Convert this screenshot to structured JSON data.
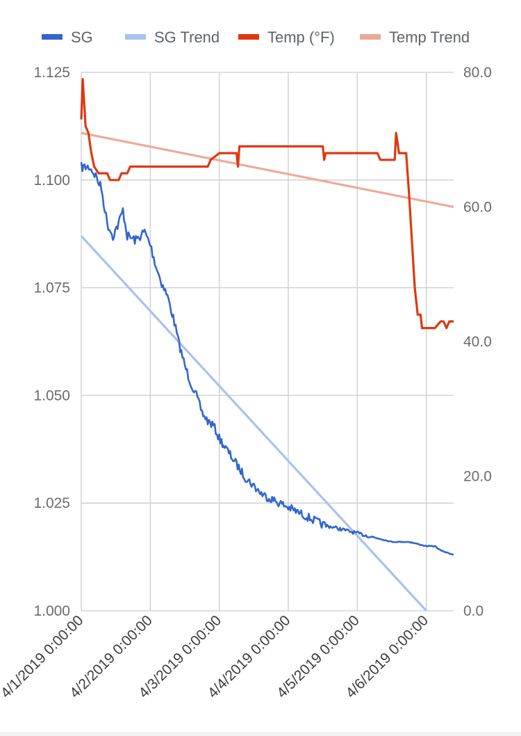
{
  "chart_data": {
    "type": "line",
    "legend": {
      "position": "top",
      "items": [
        {
          "name": "SG",
          "color": "#3366cc"
        },
        {
          "name": "SG Trend",
          "color": "#a9c1ec"
        },
        {
          "name": "Temp (°F)",
          "color": "#dc3912"
        },
        {
          "name": "Temp Trend",
          "color": "#eeaa98"
        }
      ]
    },
    "x_axis": {
      "type": "date",
      "range": [
        "2019-04-01 00:00",
        "2019-04-06 09:30"
      ],
      "tick_values": [
        "2019-04-01",
        "2019-04-02",
        "2019-04-03",
        "2019-04-04",
        "2019-04-05",
        "2019-04-06"
      ],
      "tick_labels": [
        "4/1/2019 0:00:00",
        "4/2/2019 0:00:00",
        "4/3/2019 0:00:00",
        "4/4/2019 0:00:00",
        "4/5/2019 0:00:00",
        "4/6/2019 0:00:00"
      ]
    },
    "y_left": {
      "range": [
        1.0,
        1.125
      ],
      "tick_values": [
        1.0,
        1.025,
        1.05,
        1.075,
        1.1,
        1.125
      ],
      "tick_labels": [
        "1.000",
        "1.025",
        "1.050",
        "1.075",
        "1.100",
        "1.125"
      ]
    },
    "y_right": {
      "range": [
        0,
        80
      ],
      "tick_values": [
        0,
        20,
        40,
        60,
        80
      ],
      "tick_labels": [
        "0.0",
        "20.0",
        "40.0",
        "60.0",
        "80.0"
      ]
    },
    "grid": true,
    "series": [
      {
        "name": "SG",
        "axis": "left",
        "color": "#3366cc",
        "jitter": true,
        "points": [
          [
            "2019-04-01 00:00",
            1.103
          ],
          [
            "2019-04-01 03:00",
            1.103
          ],
          [
            "2019-04-01 05:00",
            1.101
          ],
          [
            "2019-04-01 07:00",
            1.098
          ],
          [
            "2019-04-01 09:00",
            1.09
          ],
          [
            "2019-04-01 11:00",
            1.087
          ],
          [
            "2019-04-01 13:00",
            1.09
          ],
          [
            "2019-04-01 14:30",
            1.093
          ],
          [
            "2019-04-01 16:00",
            1.087
          ],
          [
            "2019-04-01 19:00",
            1.086
          ],
          [
            "2019-04-01 22:00",
            1.088
          ],
          [
            "2019-04-02 00:00",
            1.085
          ],
          [
            "2019-04-02 02:00",
            1.08
          ],
          [
            "2019-04-02 04:00",
            1.076
          ],
          [
            "2019-04-02 06:00",
            1.073
          ],
          [
            "2019-04-02 08:00",
            1.068
          ],
          [
            "2019-04-02 10:00",
            1.062
          ],
          [
            "2019-04-02 12:00",
            1.057
          ],
          [
            "2019-04-02 14:00",
            1.053
          ],
          [
            "2019-04-02 16:00",
            1.05
          ],
          [
            "2019-04-02 18:00",
            1.046
          ],
          [
            "2019-04-02 20:00",
            1.044
          ],
          [
            "2019-04-02 22:00",
            1.043
          ],
          [
            "2019-04-03 00:00",
            1.04
          ],
          [
            "2019-04-03 03:00",
            1.037
          ],
          [
            "2019-04-03 06:00",
            1.034
          ],
          [
            "2019-04-03 09:00",
            1.031
          ],
          [
            "2019-04-03 12:00",
            1.029
          ],
          [
            "2019-04-03 15:00",
            1.027
          ],
          [
            "2019-04-03 18:00",
            1.026
          ],
          [
            "2019-04-04 00:00",
            1.024
          ],
          [
            "2019-04-04 06:00",
            1.022
          ],
          [
            "2019-04-04 12:00",
            1.02
          ],
          [
            "2019-04-04 18:00",
            1.019
          ],
          [
            "2019-04-05 00:00",
            1.018
          ],
          [
            "2019-04-05 06:00",
            1.017
          ],
          [
            "2019-04-05 12:00",
            1.016
          ],
          [
            "2019-04-05 18:00",
            1.016
          ],
          [
            "2019-04-06 00:00",
            1.015
          ],
          [
            "2019-04-06 03:00",
            1.015
          ],
          [
            "2019-04-06 05:00",
            1.014
          ],
          [
            "2019-04-06 09:30",
            1.013
          ]
        ]
      },
      {
        "name": "SG Trend",
        "axis": "left",
        "color": "#a9c1ec",
        "points": [
          [
            "2019-04-01 00:00",
            1.087
          ],
          [
            "2019-04-06 00:00",
            1.0
          ]
        ]
      },
      {
        "name": "Temp (°F)",
        "axis": "right",
        "color": "#dc3912",
        "points": [
          [
            "2019-04-01 00:00",
            73.0
          ],
          [
            "2019-04-01 00:30",
            79.0
          ],
          [
            "2019-04-01 01:30",
            72.0
          ],
          [
            "2019-04-01 02:30",
            71.0
          ],
          [
            "2019-04-01 03:30",
            68.0
          ],
          [
            "2019-04-01 04:30",
            66.0
          ],
          [
            "2019-04-01 06:00",
            65.0
          ],
          [
            "2019-04-01 09:00",
            65.0
          ],
          [
            "2019-04-01 10:00",
            64.0
          ],
          [
            "2019-04-01 13:00",
            64.0
          ],
          [
            "2019-04-01 14:00",
            65.0
          ],
          [
            "2019-04-01 16:00",
            65.0
          ],
          [
            "2019-04-01 17:00",
            66.0
          ],
          [
            "2019-04-02 20:00",
            66.0
          ],
          [
            "2019-04-02 21:00",
            67.0
          ],
          [
            "2019-04-03 00:00",
            68.0
          ],
          [
            "2019-04-03 06:00",
            68.0
          ],
          [
            "2019-04-03 06:30",
            66.0
          ],
          [
            "2019-04-03 07:00",
            69.0
          ],
          [
            "2019-04-04 12:00",
            69.0
          ],
          [
            "2019-04-04 12:30",
            67.0
          ],
          [
            "2019-04-04 13:00",
            68.0
          ],
          [
            "2019-04-05 07:00",
            68.0
          ],
          [
            "2019-04-05 08:00",
            67.0
          ],
          [
            "2019-04-05 13:00",
            67.0
          ],
          [
            "2019-04-05 13:30",
            71.0
          ],
          [
            "2019-04-05 14:30",
            68.0
          ],
          [
            "2019-04-05 17:00",
            68.0
          ],
          [
            "2019-04-05 18:00",
            62.0
          ],
          [
            "2019-04-05 20:00",
            48.0
          ],
          [
            "2019-04-05 21:00",
            44.0
          ],
          [
            "2019-04-05 22:00",
            44.0
          ],
          [
            "2019-04-05 22:30",
            42.0
          ],
          [
            "2019-04-06 03:00",
            42.0
          ],
          [
            "2019-04-06 05:00",
            43.0
          ],
          [
            "2019-04-06 06:00",
            43.0
          ],
          [
            "2019-04-06 07:00",
            42.0
          ],
          [
            "2019-04-06 08:00",
            43.0
          ],
          [
            "2019-04-06 09:30",
            43.0
          ]
        ]
      },
      {
        "name": "Temp Trend",
        "axis": "right",
        "color": "#eeaa98",
        "points": [
          [
            "2019-04-01 00:00",
            71.0
          ],
          [
            "2019-04-06 09:30",
            60.0
          ]
        ]
      }
    ]
  }
}
